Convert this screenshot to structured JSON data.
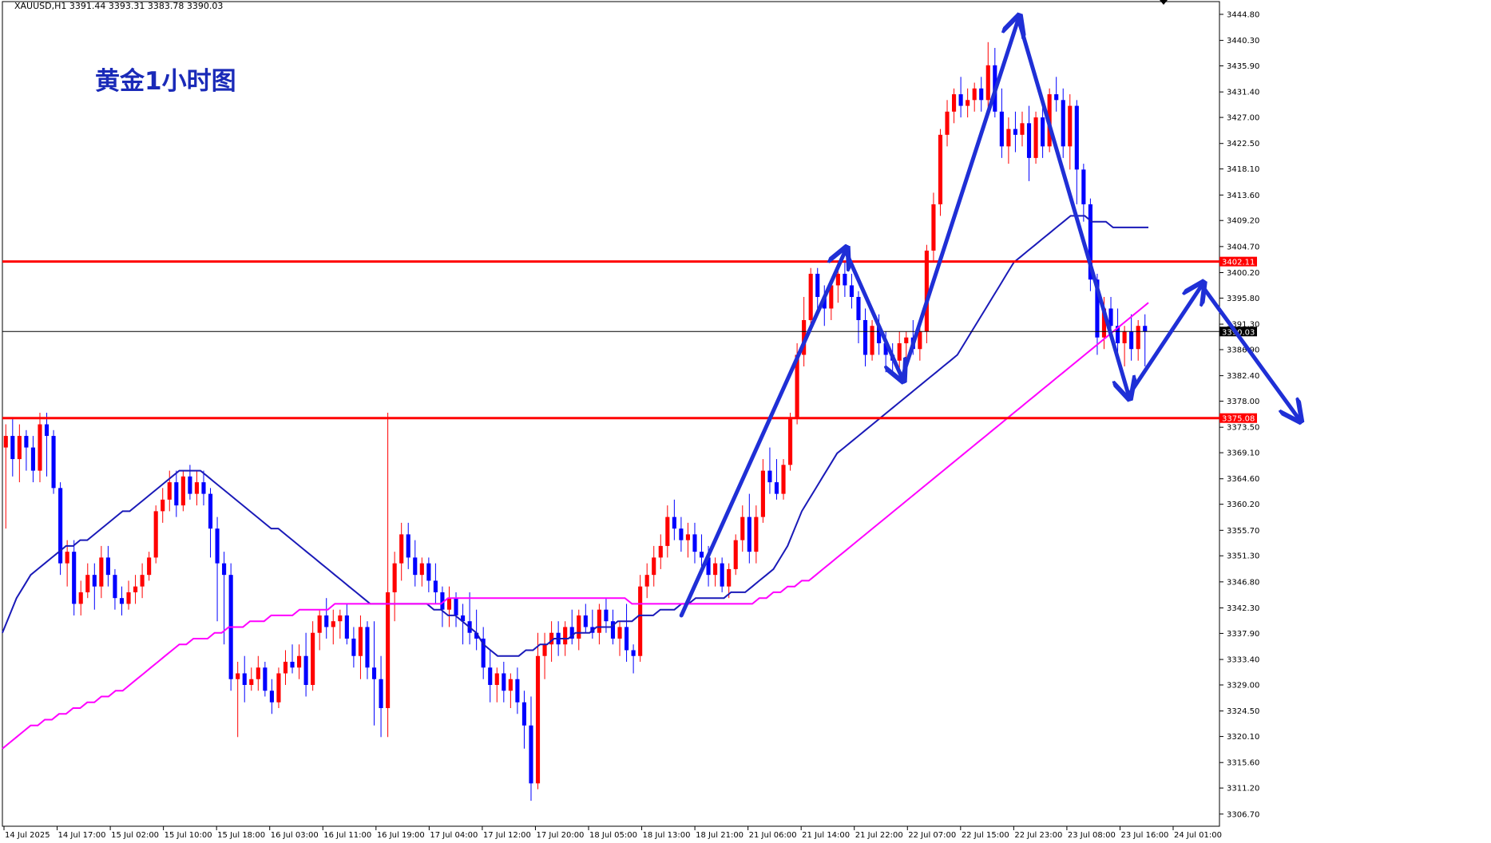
{
  "chart_data": {
    "type": "candlestick",
    "symbol_header": "XAUUSD,H1 3391.44 3393.31 3383.78 3390.03",
    "overlay_title": "黄金1小时图",
    "ylim": [
      3304.6,
      3447.0
    ],
    "y_ticks": [
      "3444.80",
      "3440.30",
      "3435.90",
      "3431.40",
      "3427.00",
      "3422.50",
      "3418.10",
      "3413.60",
      "3409.20",
      "3404.70",
      "3400.20",
      "3395.80",
      "3391.30",
      "3386.90",
      "3382.40",
      "3378.00",
      "3373.50",
      "3369.10",
      "3364.60",
      "3360.20",
      "3355.70",
      "3351.30",
      "3346.80",
      "3342.30",
      "3337.90",
      "3333.40",
      "3329.00",
      "3324.50",
      "3320.10",
      "3315.60",
      "3311.20",
      "3306.70"
    ],
    "x_ticks": [
      "14 Jul 2025",
      "14 Jul 17:00",
      "15 Jul 02:00",
      "15 Jul 10:00",
      "15 Jul 18:00",
      "16 Jul 03:00",
      "16 Jul 11:00",
      "16 Jul 19:00",
      "17 Jul 04:00",
      "17 Jul 12:00",
      "17 Jul 20:00",
      "18 Jul 05:00",
      "18 Jul 13:00",
      "18 Jul 21:00",
      "21 Jul 06:00",
      "21 Jul 14:00",
      "21 Jul 22:00",
      "22 Jul 07:00",
      "22 Jul 15:00",
      "22 Jul 23:00",
      "23 Jul 08:00",
      "23 Jul 16:00",
      "24 Jul 01:00"
    ],
    "horizontal_levels": [
      {
        "label": "3402.11",
        "value": 3402.11,
        "color": "#ff0000"
      },
      {
        "label": "3375.08",
        "value": 3375.08,
        "color": "#ff0000"
      }
    ],
    "current_price": {
      "label": "3390.03",
      "value": 3390.03
    },
    "candles_ohlc": [
      [
        3370,
        3374,
        3356,
        3372
      ],
      [
        3372,
        3375,
        3365,
        3368
      ],
      [
        3368,
        3374,
        3364,
        3372
      ],
      [
        3372,
        3373,
        3366,
        3370
      ],
      [
        3370,
        3372,
        3364,
        3366
      ],
      [
        3366,
        3376,
        3364,
        3374
      ],
      [
        3374,
        3376,
        3365,
        3372
      ],
      [
        3372,
        3373,
        3362,
        3363
      ],
      [
        3363,
        3364,
        3348,
        3350
      ],
      [
        3350,
        3354,
        3346,
        3352
      ],
      [
        3352,
        3354,
        3341,
        3343
      ],
      [
        3343,
        3347,
        3341,
        3345
      ],
      [
        3345,
        3350,
        3344,
        3348
      ],
      [
        3348,
        3350,
        3342,
        3346
      ],
      [
        3346,
        3353,
        3344,
        3351
      ],
      [
        3351,
        3353,
        3346,
        3348
      ],
      [
        3348,
        3349,
        3342,
        3344
      ],
      [
        3344,
        3346,
        3341,
        3343
      ],
      [
        3343,
        3347,
        3342,
        3345
      ],
      [
        3345,
        3348,
        3343,
        3346
      ],
      [
        3346,
        3350,
        3344,
        3348
      ],
      [
        3348,
        3352,
        3347,
        3351
      ],
      [
        3351,
        3360,
        3350,
        3359
      ],
      [
        3359,
        3363,
        3357,
        3361
      ],
      [
        3361,
        3366,
        3359,
        3364
      ],
      [
        3364,
        3366,
        3358,
        3360
      ],
      [
        3360,
        3366,
        3359,
        3365
      ],
      [
        3365,
        3367,
        3361,
        3362
      ],
      [
        3362,
        3366,
        3360,
        3364
      ],
      [
        3364,
        3366,
        3360,
        3362
      ],
      [
        3362,
        3363,
        3351,
        3356
      ],
      [
        3356,
        3358,
        3340,
        3350
      ],
      [
        3350,
        3352,
        3336,
        3348
      ],
      [
        3348,
        3350,
        3328,
        3330
      ],
      [
        3330,
        3333,
        3320,
        3331
      ],
      [
        3331,
        3334,
        3326,
        3329
      ],
      [
        3329,
        3332,
        3328,
        3330
      ],
      [
        3330,
        3334,
        3328,
        3332
      ],
      [
        3332,
        3333,
        3327,
        3328
      ],
      [
        3328,
        3330,
        3324,
        3326
      ],
      [
        3326,
        3332,
        3325,
        3331
      ],
      [
        3331,
        3335,
        3329,
        3333
      ],
      [
        3333,
        3336,
        3331,
        3332
      ],
      [
        3332,
        3336,
        3330,
        3334
      ],
      [
        3334,
        3338,
        3327,
        3329
      ],
      [
        3329,
        3340,
        3328,
        3338
      ],
      [
        3338,
        3342,
        3335,
        3341
      ],
      [
        3341,
        3344,
        3337,
        3339
      ],
      [
        3339,
        3342,
        3336,
        3340
      ],
      [
        3340,
        3342,
        3337,
        3341
      ],
      [
        3341,
        3343,
        3336,
        3337
      ],
      [
        3337,
        3339,
        3332,
        3334
      ],
      [
        3334,
        3341,
        3330,
        3339
      ],
      [
        3339,
        3340,
        3330,
        3332
      ],
      [
        3332,
        3340,
        3322,
        3330
      ],
      [
        3330,
        3334,
        3320,
        3325
      ],
      [
        3325,
        3376,
        3320,
        3345
      ],
      [
        3345,
        3352,
        3340,
        3350
      ],
      [
        3350,
        3357,
        3347,
        3355
      ],
      [
        3355,
        3357,
        3349,
        3351
      ],
      [
        3351,
        3354,
        3346,
        3348
      ],
      [
        3348,
        3351,
        3346,
        3350
      ],
      [
        3350,
        3351,
        3345,
        3347
      ],
      [
        3347,
        3350,
        3343,
        3345
      ],
      [
        3345,
        3346,
        3339,
        3342
      ],
      [
        3342,
        3346,
        3339,
        3344
      ],
      [
        3344,
        3345,
        3339,
        3341
      ],
      [
        3341,
        3343,
        3336,
        3340
      ],
      [
        3340,
        3345,
        3336,
        3338
      ],
      [
        3338,
        3342,
        3335,
        3337
      ],
      [
        3337,
        3339,
        3330,
        3332
      ],
      [
        3332,
        3335,
        3326,
        3329
      ],
      [
        3329,
        3332,
        3326,
        3331
      ],
      [
        3331,
        3333,
        3326,
        3328
      ],
      [
        3328,
        3331,
        3325,
        3330
      ],
      [
        3330,
        3332,
        3324,
        3326
      ],
      [
        3326,
        3328,
        3318,
        3322
      ],
      [
        3322,
        3327,
        3309,
        3312
      ],
      [
        3312,
        3338,
        3311,
        3334
      ],
      [
        3334,
        3338,
        3330,
        3336
      ],
      [
        3336,
        3340,
        3333,
        3338
      ],
      [
        3338,
        3340,
        3334,
        3336
      ],
      [
        3336,
        3340,
        3334,
        3339
      ],
      [
        3339,
        3342,
        3336,
        3337
      ],
      [
        3337,
        3342,
        3335,
        3341
      ],
      [
        3341,
        3343,
        3338,
        3339
      ],
      [
        3339,
        3342,
        3337,
        3338
      ],
      [
        3338,
        3343,
        3336,
        3342
      ],
      [
        3342,
        3344,
        3338,
        3340
      ],
      [
        3340,
        3342,
        3336,
        3337
      ],
      [
        3337,
        3340,
        3334,
        3339
      ],
      [
        3339,
        3343,
        3333,
        3335
      ],
      [
        3335,
        3336,
        3331,
        3334
      ],
      [
        3334,
        3348,
        3333,
        3346
      ],
      [
        3346,
        3350,
        3344,
        3348
      ],
      [
        3348,
        3353,
        3346,
        3351
      ],
      [
        3351,
        3355,
        3349,
        3353
      ],
      [
        3353,
        3360,
        3351,
        3358
      ],
      [
        3358,
        3361,
        3354,
        3356
      ],
      [
        3356,
        3358,
        3352,
        3354
      ],
      [
        3354,
        3357,
        3351,
        3355
      ],
      [
        3355,
        3357,
        3350,
        3352
      ],
      [
        3352,
        3355,
        3349,
        3351
      ],
      [
        3351,
        3353,
        3346,
        3348
      ],
      [
        3348,
        3351,
        3346,
        3350
      ],
      [
        3350,
        3351,
        3345,
        3346
      ],
      [
        3346,
        3350,
        3344,
        3349
      ],
      [
        3349,
        3355,
        3348,
        3354
      ],
      [
        3354,
        3360,
        3352,
        3358
      ],
      [
        3358,
        3362,
        3350,
        3352
      ],
      [
        3352,
        3360,
        3350,
        3358
      ],
      [
        3358,
        3368,
        3357,
        3366
      ],
      [
        3366,
        3370,
        3362,
        3364
      ],
      [
        3364,
        3368,
        3361,
        3362
      ],
      [
        3362,
        3368,
        3361,
        3367
      ],
      [
        3367,
        3376,
        3366,
        3375
      ],
      [
        3375,
        3388,
        3374,
        3386
      ],
      [
        3386,
        3396,
        3384,
        3392
      ],
      [
        3392,
        3401,
        3390,
        3400
      ],
      [
        3400,
        3401,
        3394,
        3396
      ],
      [
        3396,
        3398,
        3391,
        3394
      ],
      [
        3394,
        3399,
        3392,
        3398
      ],
      [
        3398,
        3402,
        3395,
        3400
      ],
      [
        3400,
        3402,
        3396,
        3398
      ],
      [
        3398,
        3400,
        3394,
        3396
      ],
      [
        3396,
        3397,
        3388,
        3392
      ],
      [
        3392,
        3394,
        3384,
        3386
      ],
      [
        3386,
        3392,
        3385,
        3391
      ],
      [
        3391,
        3393,
        3386,
        3388
      ],
      [
        3388,
        3390,
        3383,
        3386
      ],
      [
        3386,
        3388,
        3383,
        3385
      ],
      [
        3385,
        3390,
        3383,
        3388
      ],
      [
        3388,
        3390,
        3385,
        3389
      ],
      [
        3389,
        3392,
        3386,
        3387
      ],
      [
        3387,
        3391,
        3385,
        3390
      ],
      [
        3390,
        3405,
        3388,
        3404
      ],
      [
        3404,
        3414,
        3402,
        3412
      ],
      [
        3412,
        3425,
        3410,
        3424
      ],
      [
        3424,
        3430,
        3422,
        3428
      ],
      [
        3428,
        3432,
        3426,
        3431
      ],
      [
        3431,
        3434,
        3427,
        3429
      ],
      [
        3429,
        3432,
        3427,
        3430
      ],
      [
        3430,
        3433,
        3428,
        3432
      ],
      [
        3432,
        3434,
        3428,
        3430
      ],
      [
        3430,
        3440,
        3428,
        3436
      ],
      [
        3436,
        3439,
        3427,
        3428
      ],
      [
        3428,
        3432,
        3420,
        3422
      ],
      [
        3422,
        3427,
        3419,
        3425
      ],
      [
        3425,
        3428,
        3421,
        3424
      ],
      [
        3424,
        3428,
        3422,
        3426
      ],
      [
        3426,
        3429,
        3416,
        3420
      ],
      [
        3420,
        3428,
        3419,
        3427
      ],
      [
        3427,
        3429,
        3420,
        3422
      ],
      [
        3422,
        3432,
        3421,
        3431
      ],
      [
        3431,
        3434,
        3428,
        3430
      ],
      [
        3430,
        3432,
        3420,
        3422
      ],
      [
        3422,
        3431,
        3418,
        3429
      ],
      [
        3429,
        3430,
        3412,
        3418
      ],
      [
        3418,
        3419,
        3409,
        3412
      ],
      [
        3412,
        3413,
        3397,
        3399
      ],
      [
        3399,
        3400,
        3386,
        3389
      ],
      [
        3389,
        3396,
        3387,
        3394
      ],
      [
        3394,
        3396,
        3389,
        3391
      ],
      [
        3391,
        3394,
        3386,
        3388
      ],
      [
        3388,
        3391,
        3384,
        3390
      ],
      [
        3390,
        3393,
        3385,
        3387
      ],
      [
        3387,
        3392,
        3385,
        3391
      ],
      [
        3391,
        3393,
        3384,
        3390
      ]
    ],
    "ma_series": [
      {
        "color": "#1a1ab8",
        "values": [
          3338,
          3341,
          3344,
          3346,
          3348,
          3349,
          3350,
          3351,
          3352,
          3353,
          3353,
          3354,
          3354,
          3355,
          3356,
          3357,
          3358,
          3359,
          3359,
          3360,
          3361,
          3362,
          3363,
          3364,
          3365,
          3366,
          3366,
          3366,
          3366,
          3365,
          3364,
          3363,
          3362,
          3361,
          3360,
          3359,
          3358,
          3357,
          3356,
          3356,
          3355,
          3354,
          3353,
          3352,
          3351,
          3350,
          3349,
          3348,
          3347,
          3346,
          3345,
          3344,
          3343,
          3343,
          3343,
          3343,
          3343,
          3343,
          3343,
          3343,
          3343,
          3342,
          3342,
          3341,
          3341,
          3340,
          3339,
          3338,
          3336,
          3335,
          3334,
          3334,
          3334,
          3334,
          3335,
          3335,
          3336,
          3336,
          3337,
          3337,
          3337,
          3338,
          3338,
          3338,
          3339,
          3339,
          3339,
          3340,
          3340,
          3340,
          3341,
          3341,
          3341,
          3342,
          3342,
          3342,
          3343,
          3343,
          3344,
          3344,
          3344,
          3344,
          3344,
          3345,
          3345,
          3345,
          3346,
          3347,
          3348,
          3349,
          3351,
          3353,
          3356,
          3359,
          3361,
          3363,
          3365,
          3367,
          3369,
          3370,
          3371,
          3372,
          3373,
          3374,
          3375,
          3376,
          3377,
          3378,
          3379,
          3380,
          3381,
          3382,
          3383,
          3384,
          3385,
          3386,
          3388,
          3390,
          3392,
          3394,
          3396,
          3398,
          3400,
          3402,
          3403,
          3404,
          3405,
          3406,
          3407,
          3408,
          3409,
          3410,
          3410,
          3410,
          3409,
          3409,
          3409,
          3408,
          3408,
          3408,
          3408,
          3408,
          3408
        ]
      },
      {
        "color": "#ff00ff",
        "values": [
          3318,
          3319,
          3320,
          3321,
          3322,
          3322,
          3323,
          3323,
          3324,
          3324,
          3325,
          3325,
          3326,
          3326,
          3327,
          3327,
          3328,
          3328,
          3329,
          3330,
          3331,
          3332,
          3333,
          3334,
          3335,
          3336,
          3336,
          3337,
          3337,
          3337,
          3338,
          3338,
          3339,
          3339,
          3339,
          3340,
          3340,
          3340,
          3341,
          3341,
          3341,
          3341,
          3342,
          3342,
          3342,
          3342,
          3342,
          3343,
          3343,
          3343,
          3343,
          3343,
          3343,
          3343,
          3343,
          3343,
          3343,
          3343,
          3343,
          3343,
          3343,
          3343,
          3343,
          3344,
          3344,
          3344,
          3344,
          3344,
          3344,
          3344,
          3344,
          3344,
          3344,
          3344,
          3344,
          3344,
          3344,
          3344,
          3344,
          3344,
          3344,
          3344,
          3344,
          3344,
          3344,
          3344,
          3344,
          3344,
          3344,
          3343,
          3343,
          3343,
          3343,
          3343,
          3343,
          3343,
          3343,
          3343,
          3343,
          3343,
          3343,
          3343,
          3343,
          3343,
          3343,
          3343,
          3343,
          3344,
          3344,
          3345,
          3345,
          3346,
          3346,
          3347,
          3347,
          3348,
          3349,
          3350,
          3351,
          3352,
          3353,
          3354,
          3355,
          3356,
          3357,
          3358,
          3359,
          3360,
          3361,
          3362,
          3363,
          3364,
          3365,
          3366,
          3367,
          3368,
          3369,
          3370,
          3371,
          3372,
          3373,
          3374,
          3375,
          3376,
          3377,
          3378,
          3379,
          3380,
          3381,
          3382,
          3383,
          3384,
          3385,
          3386,
          3387,
          3388,
          3389,
          3390,
          3391,
          3392,
          3393,
          3394,
          3395
        ]
      }
    ],
    "annotation_color": "#1f2fd6",
    "annotation_arrows_data": [
      [
        [
          0.457,
          3341
        ],
        [
          0.567,
          3404
        ]
      ],
      [
        [
          0.567,
          3404
        ],
        [
          0.605,
          3382
        ]
      ],
      [
        [
          0.605,
          3382
        ],
        [
          0.683,
          3444
        ]
      ],
      [
        [
          0.683,
          3444
        ],
        [
          0.757,
          3379
        ]
      ],
      [
        [
          0.757,
          3379
        ],
        [
          0.806,
          3398
        ]
      ],
      [
        [
          0.806,
          3398
        ],
        [
          0.871,
          3375
        ]
      ]
    ]
  }
}
